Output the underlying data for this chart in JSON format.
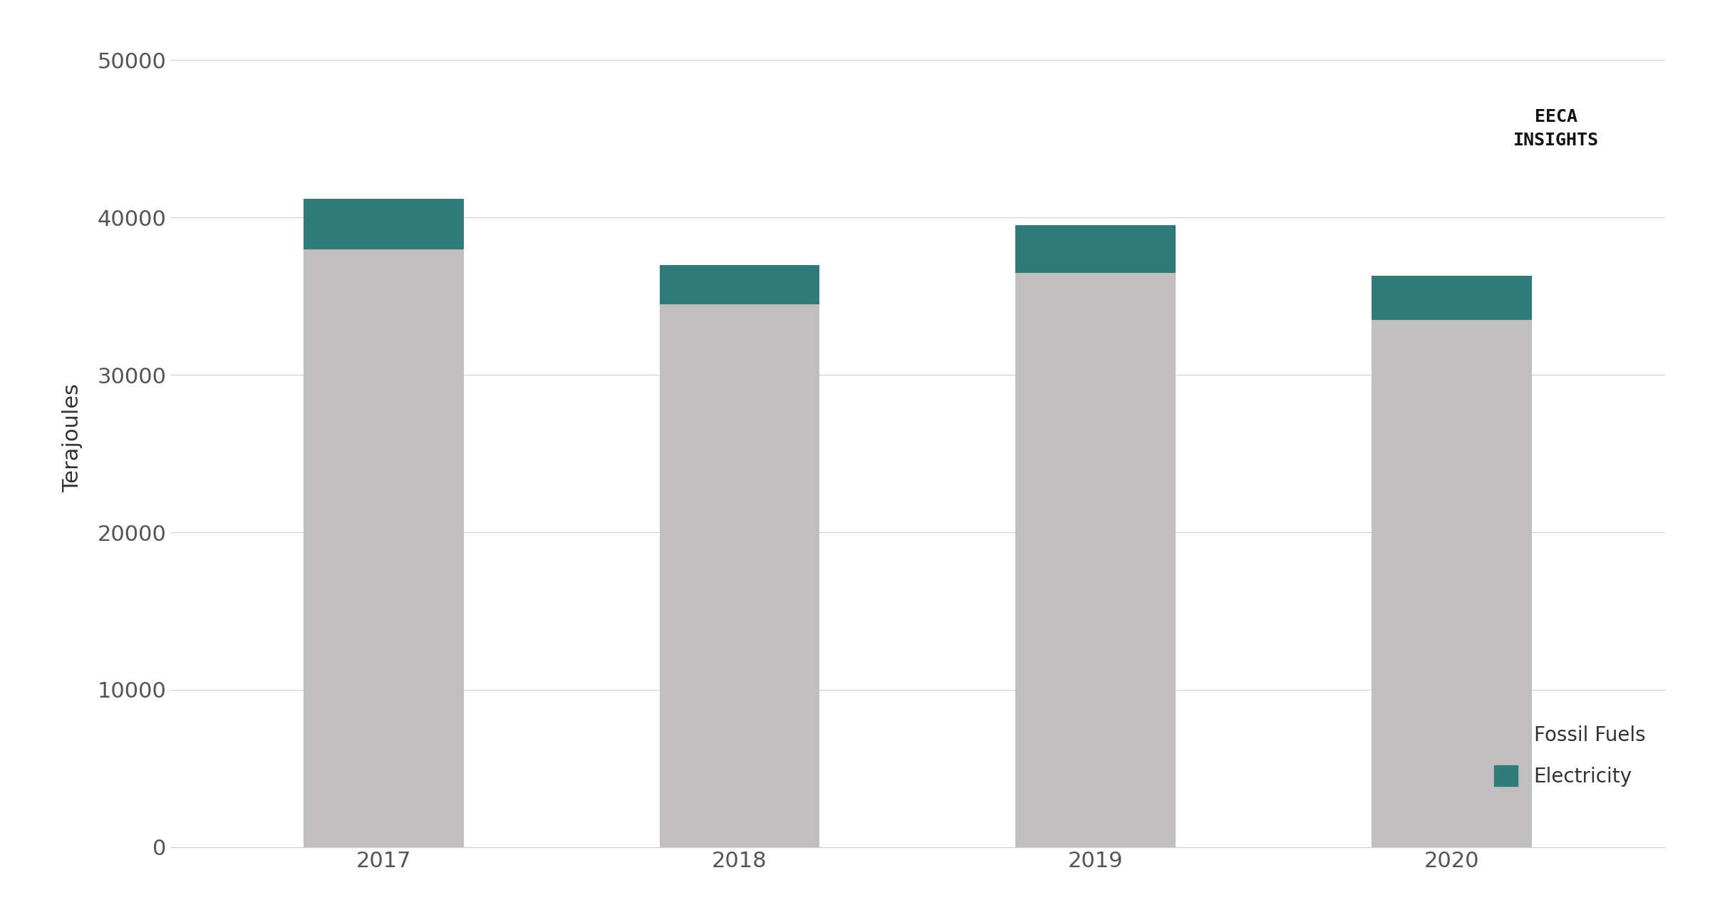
{
  "years": [
    "2017",
    "2018",
    "2019",
    "2020"
  ],
  "fossil_fuels": [
    38000,
    34500,
    36500,
    33500
  ],
  "electricity": [
    3200,
    2500,
    3000,
    2800
  ],
  "fossil_color": "#c0bebe",
  "electricity_color": "#2e7b77",
  "ylabel": "Terajoules",
  "ylim": [
    0,
    52000
  ],
  "yticks": [
    0,
    10000,
    20000,
    30000,
    40000,
    50000
  ],
  "legend_fossil": "Fossil Fuels",
  "legend_electricity": "Electricity",
  "bar_width": 0.45,
  "background_color": "#ffffff",
  "grid_color": "#d0d0d0",
  "tick_color": "#555555",
  "font_color": "#333333",
  "eeca_text": "EECA\nINSIGHTS"
}
